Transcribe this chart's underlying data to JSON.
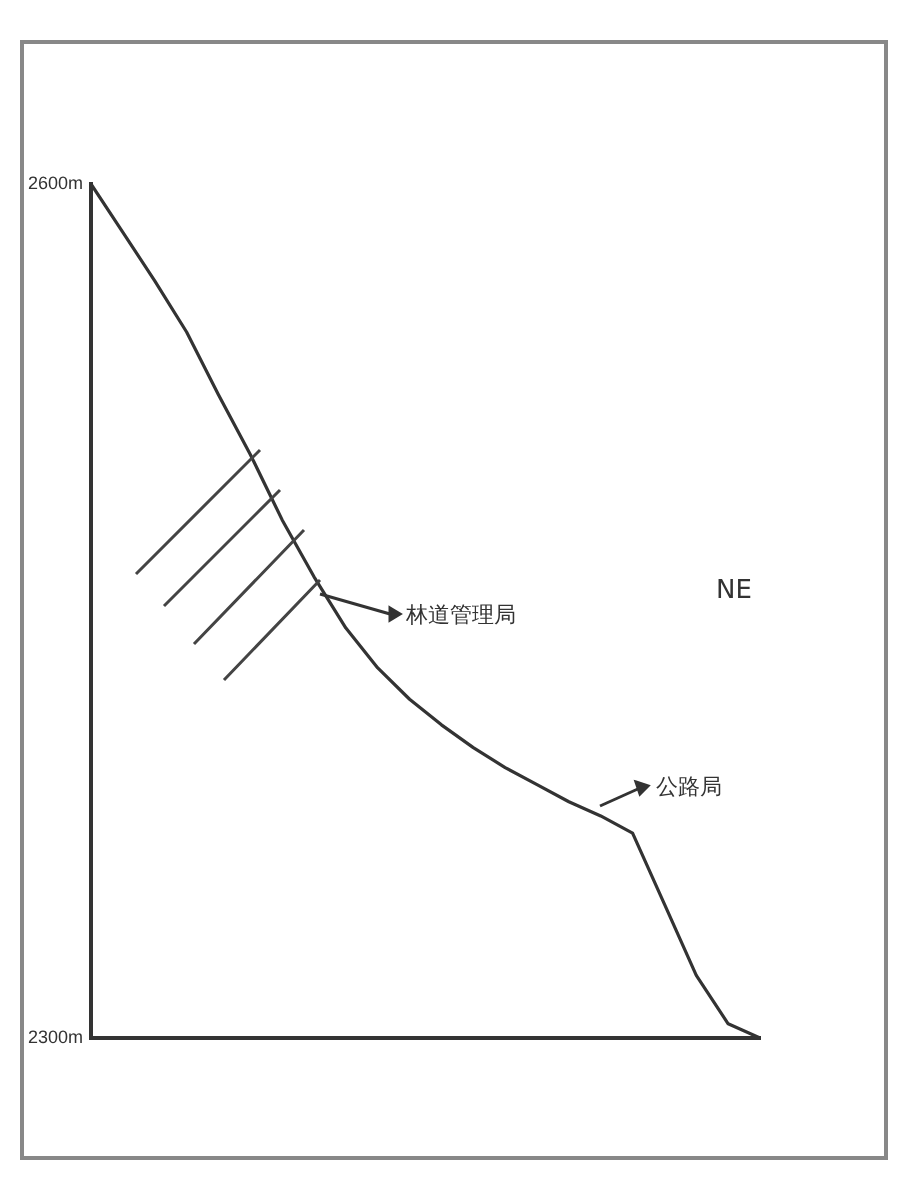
{
  "chart_data": {
    "type": "line",
    "categories": [
      null,
      null,
      null,
      null,
      null,
      null,
      null,
      null,
      null,
      null,
      null,
      null,
      null,
      null,
      null,
      null,
      null,
      null,
      null,
      null,
      null,
      null
    ],
    "series": [
      {
        "color": "#333333",
        "values": [
          2600,
          2583,
          2566,
          2548,
          2526,
          2505,
          2482,
          2462,
          2444,
          2430,
          2419,
          2410,
          2402,
          2395,
          2389,
          2383,
          2378,
          2372,
          2347,
          2322,
          2305,
          2300
        ]
      }
    ],
    "ylim": [
      2300,
      2600
    ],
    "yticks": [
      {
        "value": 2300,
        "label": "2300m"
      },
      {
        "value": 2600,
        "label": "2600m"
      }
    ],
    "annotations": [
      "林道管理局",
      "公路局",
      "NE"
    ],
    "grid": false,
    "legend": false,
    "marker": "none",
    "line_style": "solid",
    "tick_labels": "y"
  }
}
